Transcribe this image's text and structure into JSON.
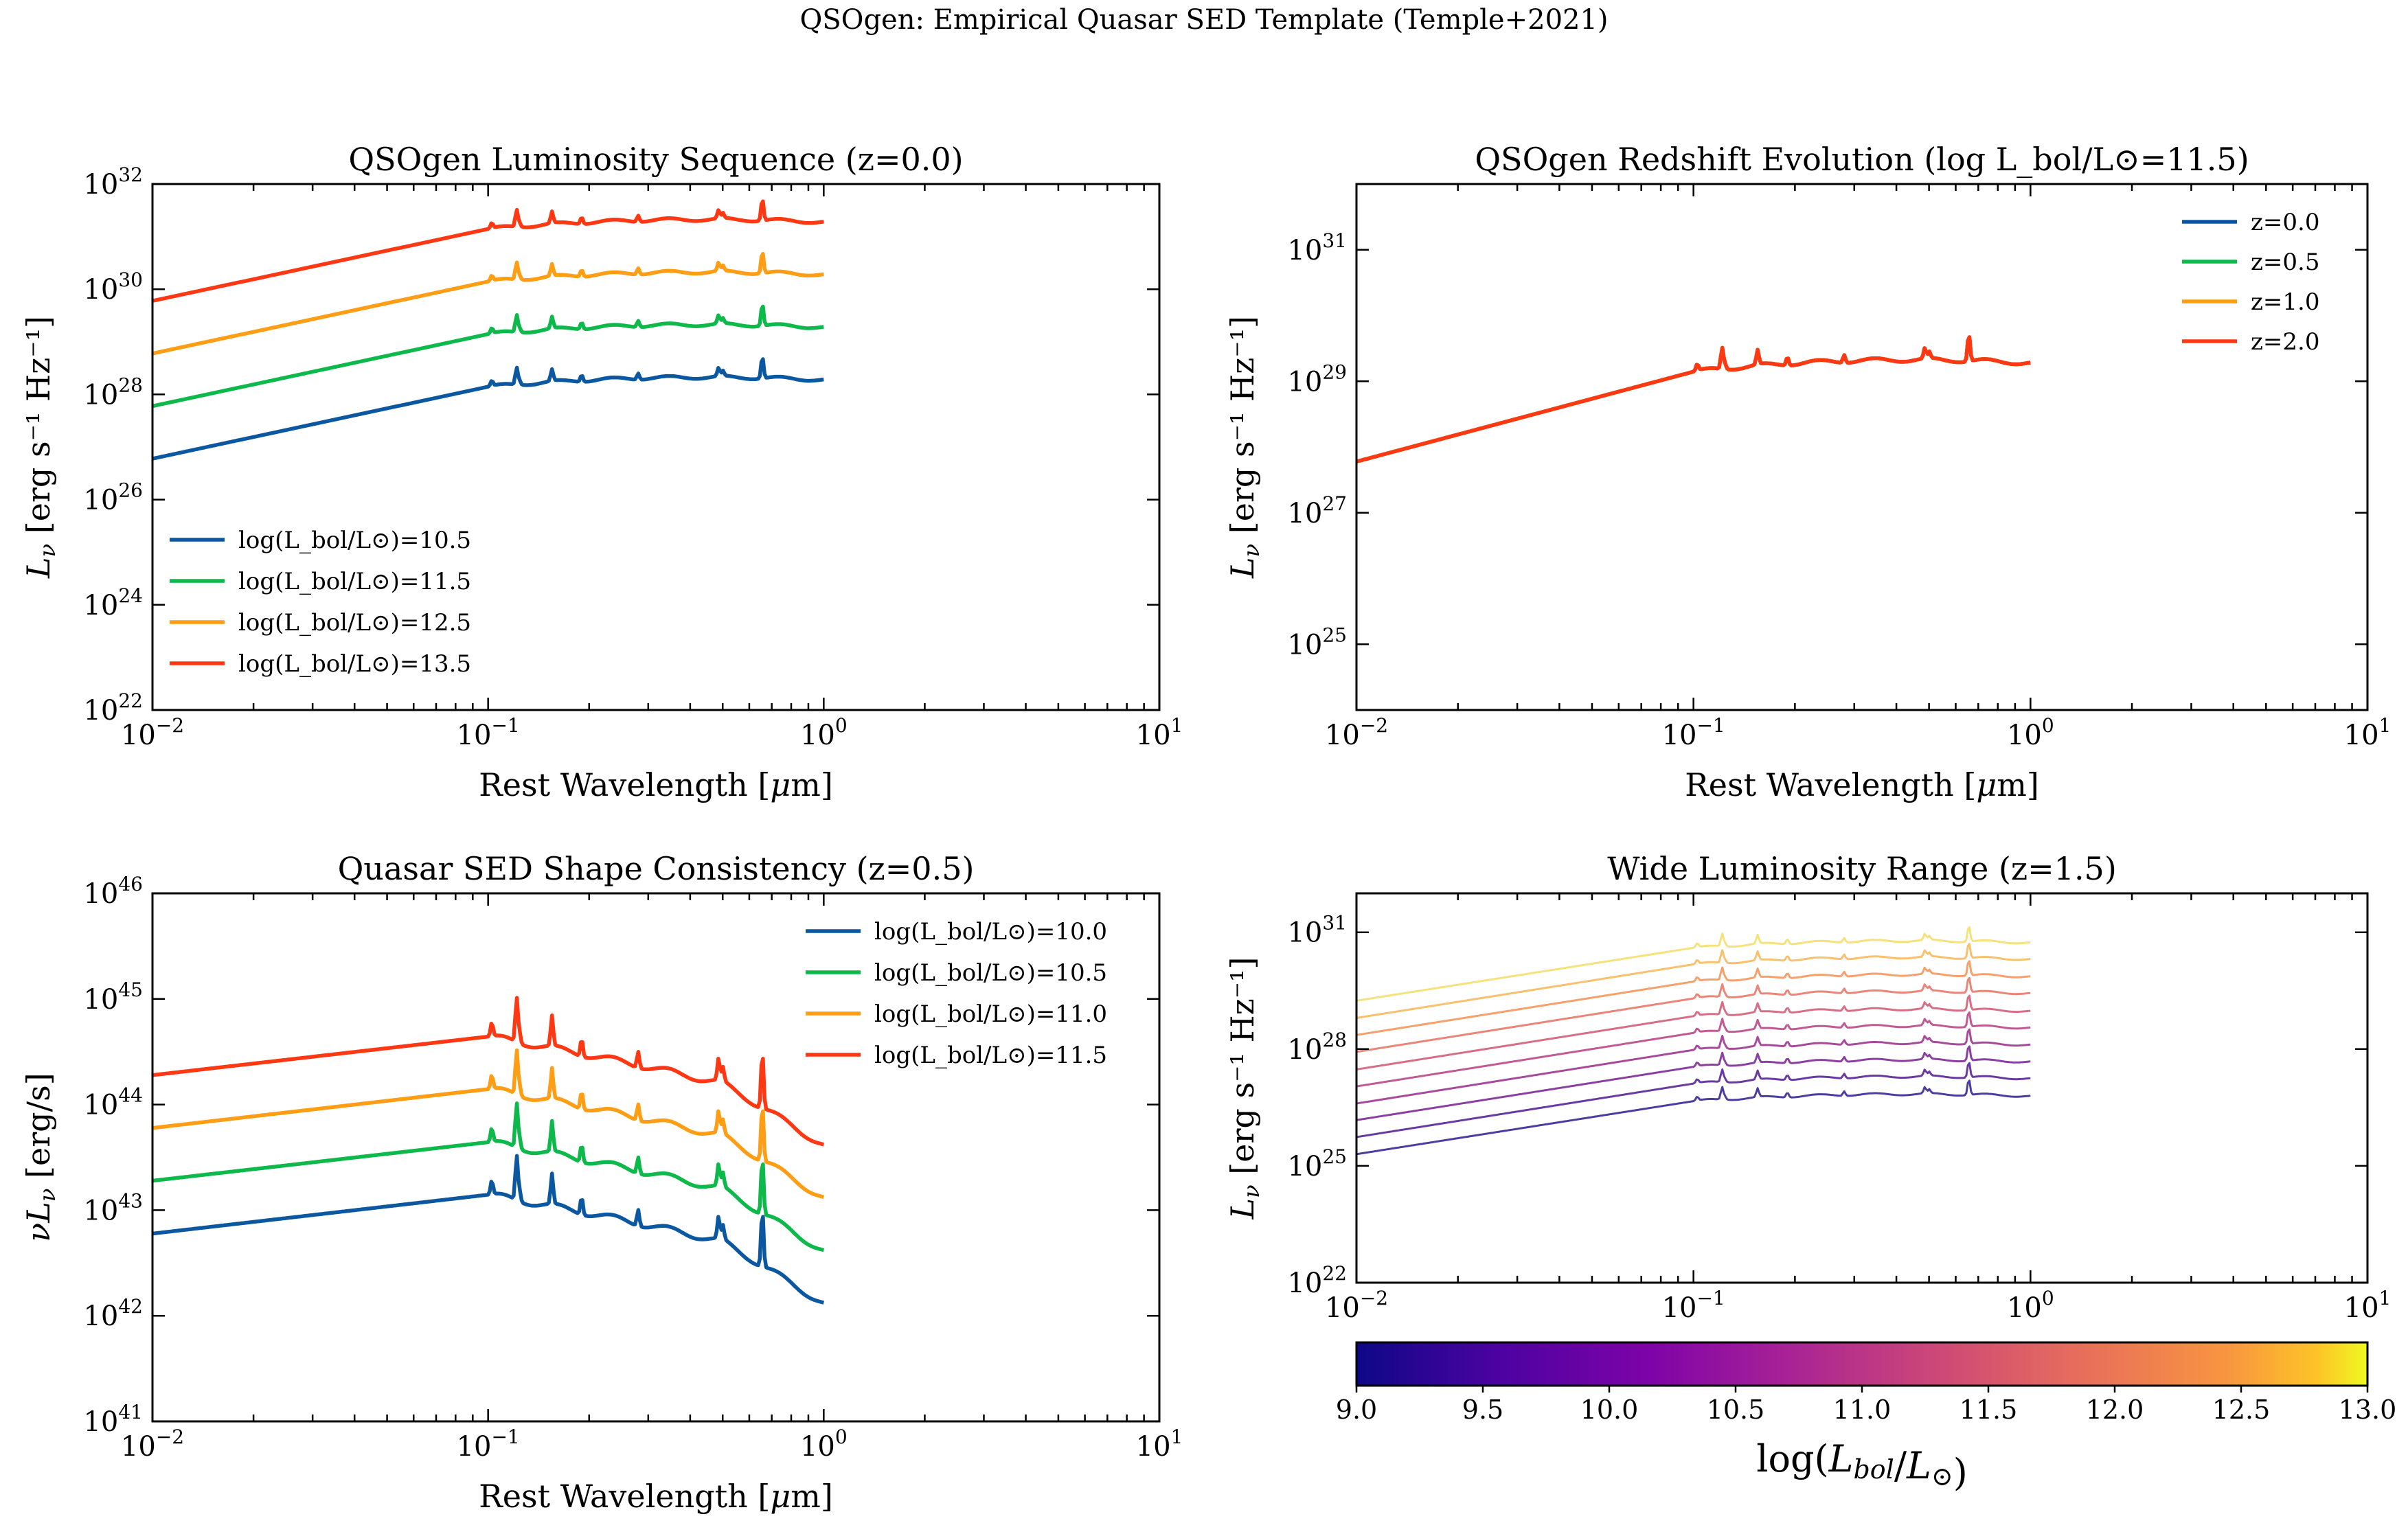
{
  "figure_title": "QSOgen: Empirical Quasar SED Template (Temple+2021)",
  "colors": {
    "blue": "#0c58a0",
    "green": "#0db94a",
    "orange": "#ff9e14",
    "red": "#ff3814"
  },
  "chart_data": [
    {
      "type": "line",
      "title": "QSOgen Luminosity Sequence (z=0.0)",
      "xlabel": "Rest Wavelength [μm]",
      "ylabel": "L_ν [erg s⁻¹ Hz⁻¹]",
      "xscale": "log",
      "yscale": "log",
      "xlim": [
        0.01,
        10
      ],
      "ylim": [
        1e+22,
        1e+32
      ],
      "xticks": [
        {
          "v": 0.01,
          "b": "10",
          "e": "−2"
        },
        {
          "v": 0.1,
          "b": "10",
          "e": "−1"
        },
        {
          "v": 1,
          "b": "10",
          "e": "0"
        },
        {
          "v": 10,
          "b": "10",
          "e": "1"
        }
      ],
      "yticks": [
        {
          "v": 1e+22,
          "b": "10",
          "e": "22"
        },
        {
          "v": 1e+24,
          "b": "10",
          "e": "24"
        },
        {
          "v": 1e+26,
          "b": "10",
          "e": "26"
        },
        {
          "v": 1e+28,
          "b": "10",
          "e": "28"
        },
        {
          "v": 1e+30,
          "b": "10",
          "e": "30"
        },
        {
          "v": 1e+32,
          "b": "10",
          "e": "32"
        }
      ],
      "legend": "lower-left",
      "quantity": "Lnu",
      "series": [
        {
          "name": "log(L_bol/L⊙)=10.5",
          "color": "#0c58a0",
          "L_at_0.01um": 6e+26,
          "L_at_0.1um": 1.4e+28
        },
        {
          "name": "log(L_bol/L⊙)=11.5",
          "color": "#0db94a",
          "L_at_0.01um": 6e+27,
          "L_at_0.1um": 1.4e+29
        },
        {
          "name": "log(L_bol/L⊙)=12.5",
          "color": "#ff9e14",
          "L_at_0.01um": 6e+28,
          "L_at_0.1um": 1.4e+30
        },
        {
          "name": "log(L_bol/L⊙)=13.5",
          "color": "#ff3814",
          "L_at_0.01um": 6e+29,
          "L_at_0.1um": 1.4e+31
        }
      ]
    },
    {
      "type": "line",
      "title": "QSOgen Redshift Evolution (log L_bol/L⊙=11.5)",
      "xlabel": "Rest Wavelength [μm]",
      "ylabel": "L_ν [erg s⁻¹ Hz⁻¹]",
      "xscale": "log",
      "yscale": "log",
      "xlim": [
        0.01,
        10
      ],
      "ylim": [
        1e+24,
        1e+32
      ],
      "xticks": [
        {
          "v": 0.01,
          "b": "10",
          "e": "−2"
        },
        {
          "v": 0.1,
          "b": "10",
          "e": "−1"
        },
        {
          "v": 1,
          "b": "10",
          "e": "0"
        },
        {
          "v": 10,
          "b": "10",
          "e": "1"
        }
      ],
      "yticks": [
        {
          "v": 1e+25,
          "b": "10",
          "e": "25"
        },
        {
          "v": 1e+27,
          "b": "10",
          "e": "27"
        },
        {
          "v": 1e+29,
          "b": "10",
          "e": "29"
        },
        {
          "v": 1e+31,
          "b": "10",
          "e": "31"
        }
      ],
      "legend": "upper-right",
      "quantity": "Lnu",
      "series": [
        {
          "name": "z=0.0",
          "color": "#0c58a0",
          "L_at_0.01um": 6e+27,
          "L_at_0.1um": 1.4e+29
        },
        {
          "name": "z=0.5",
          "color": "#0db94a",
          "L_at_0.01um": 6e+27,
          "L_at_0.1um": 1.4e+29
        },
        {
          "name": "z=1.0",
          "color": "#ff9e14",
          "L_at_0.01um": 6e+27,
          "L_at_0.1um": 1.4e+29
        },
        {
          "name": "z=2.0",
          "color": "#ff3814",
          "L_at_0.01um": 6e+27,
          "L_at_0.1um": 1.4e+29
        }
      ]
    },
    {
      "type": "line",
      "title": "Quasar SED Shape Consistency (z=0.5)",
      "xlabel": "Rest Wavelength [μm]",
      "ylabel": "νL_ν [erg/s]",
      "xscale": "log",
      "yscale": "log",
      "xlim": [
        0.01,
        10
      ],
      "ylim": [
        1e+41,
        1e+46
      ],
      "xticks": [
        {
          "v": 0.01,
          "b": "10",
          "e": "−2"
        },
        {
          "v": 0.1,
          "b": "10",
          "e": "−1"
        },
        {
          "v": 1,
          "b": "10",
          "e": "0"
        },
        {
          "v": 10,
          "b": "10",
          "e": "1"
        }
      ],
      "yticks": [
        {
          "v": 1e+41,
          "b": "10",
          "e": "41"
        },
        {
          "v": 1e+42,
          "b": "10",
          "e": "42"
        },
        {
          "v": 1e+43,
          "b": "10",
          "e": "43"
        },
        {
          "v": 1e+44,
          "b": "10",
          "e": "44"
        },
        {
          "v": 1e+45,
          "b": "10",
          "e": "45"
        },
        {
          "v": 1e+46,
          "b": "10",
          "e": "46"
        }
      ],
      "legend": "upper-right",
      "quantity": "nuLnu",
      "series": [
        {
          "name": "log(L_bol/L⊙)=10.0",
          "color": "#0c58a0",
          "L_at_0.01um": 6e+42,
          "L_at_0.1um": 1.4e+43
        },
        {
          "name": "log(L_bol/L⊙)=10.5",
          "color": "#0db94a",
          "L_at_0.01um": 1.9e+43,
          "L_at_0.1um": 4.4e+43
        },
        {
          "name": "log(L_bol/L⊙)=11.0",
          "color": "#ff9e14",
          "L_at_0.01um": 6e+43,
          "L_at_0.1um": 1.4e+44
        },
        {
          "name": "log(L_bol/L⊙)=11.5",
          "color": "#ff3814",
          "L_at_0.01um": 1.9e+44,
          "L_at_0.1um": 4.4e+44
        }
      ]
    },
    {
      "type": "line",
      "title": "Wide Luminosity Range (z=1.5)",
      "xlabel": "Rest Wavelength [μm]",
      "ylabel": "L_ν [erg s⁻¹ Hz⁻¹]",
      "xscale": "log",
      "yscale": "log",
      "xlim": [
        0.01,
        10
      ],
      "ylim": [
        1e+22,
        1e+32
      ],
      "xticks": [
        {
          "v": 0.01,
          "b": "10",
          "e": "−2"
        },
        {
          "v": 0.1,
          "b": "10",
          "e": "−1"
        },
        {
          "v": 1,
          "b": "10",
          "e": "0"
        },
        {
          "v": 10,
          "b": "10",
          "e": "1"
        }
      ],
      "yticks": [
        {
          "v": 1e+22,
          "b": "10",
          "e": "22"
        },
        {
          "v": 1e+25,
          "b": "10",
          "e": "25"
        },
        {
          "v": 1e+28,
          "b": "10",
          "e": "28"
        },
        {
          "v": 1e+31,
          "b": "10",
          "e": "31"
        }
      ],
      "legend": "none",
      "quantity": "Lnu",
      "colormap": "plasma",
      "series": [
        {
          "log_lbol": 9.0,
          "color": "#4a3ea1",
          "L_at_0.01um": 2e+25,
          "L_at_0.1um": 4.6e+26
        },
        {
          "log_lbol": 9.44,
          "color": "#6a3aa3",
          "L_at_0.01um": 5.5e+25,
          "L_at_0.1um": 1.3e+27
        },
        {
          "log_lbol": 9.89,
          "color": "#8b40a1",
          "L_at_0.01um": 1.5e+26,
          "L_at_0.1um": 3.5e+27
        },
        {
          "log_lbol": 10.33,
          "color": "#a84a9c",
          "L_at_0.01um": 4e+26,
          "L_at_0.1um": 9.5e+27
        },
        {
          "log_lbol": 10.78,
          "color": "#c15a93",
          "L_at_0.01um": 1.1e+27,
          "L_at_0.1um": 2.6e+28
        },
        {
          "log_lbol": 11.22,
          "color": "#d86e86",
          "L_at_0.01um": 3e+27,
          "L_at_0.1um": 7e+28
        },
        {
          "log_lbol": 11.67,
          "color": "#eb8577",
          "L_at_0.01um": 8.5e+27,
          "L_at_0.1um": 2e+29
        },
        {
          "log_lbol": 12.11,
          "color": "#f6a06c",
          "L_at_0.01um": 2.3e+28,
          "L_at_0.1um": 5.4e+29
        },
        {
          "log_lbol": 12.56,
          "color": "#f9c06e",
          "L_at_0.01um": 6.3e+28,
          "L_at_0.1um": 1.5e+30
        },
        {
          "log_lbol": 13.0,
          "color": "#f6e27c",
          "L_at_0.01um": 1.75e+29,
          "L_at_0.1um": 4e+30
        }
      ],
      "colorbar": {
        "label": "log(L_bol/L_⊙)",
        "range": [
          9.0,
          13.0
        ],
        "ticks": [
          "9.0",
          "9.5",
          "10.0",
          "10.5",
          "11.0",
          "11.5",
          "12.0",
          "12.5",
          "13.0"
        ]
      }
    }
  ]
}
